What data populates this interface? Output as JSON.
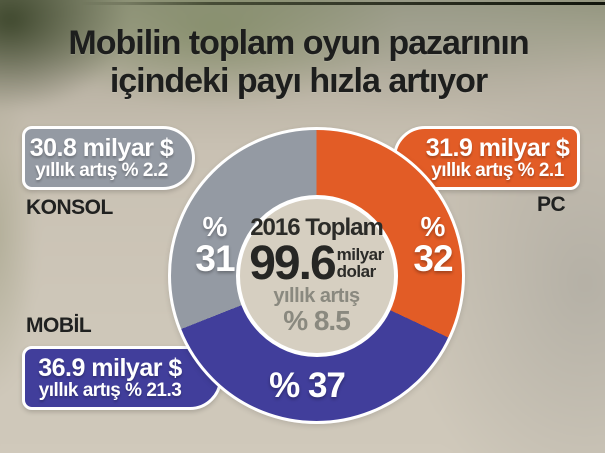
{
  "title": {
    "line1": "Mobilin toplam oyun pazarının",
    "line2": "içindeki payı hızla artıyor"
  },
  "chart_data": {
    "type": "pie",
    "title": "Mobilin toplam oyun pazarının içindeki payı hızla artıyor",
    "legend_position": "callouts",
    "hole_color": "#d6cfc1",
    "total": {
      "year_label": "2016 Toplam",
      "value": "99.6",
      "unit_line1": "milyar",
      "unit_line2": "dolar",
      "growth_label": "yıllık artış",
      "growth_value": "% 8.5",
      "total_billion_usd": 99.6,
      "annual_growth_pct": 8.5
    },
    "clockwise_order_from_top": [
      "PC",
      "MOBİL",
      "KONSOL"
    ],
    "segments": [
      {
        "label": "KONSOL",
        "share_pct": 31,
        "pct_sign": "%",
        "pct_number": "31",
        "value_label": "30.8 milyar $",
        "growth_label": "yıllık artış % 2.2",
        "billion_usd": 30.8,
        "annual_growth_pct": 2.2,
        "color": "#949aa3"
      },
      {
        "label": "PC",
        "share_pct": 32,
        "pct_sign": "%",
        "pct_number": "32",
        "value_label": "31.9 milyar $",
        "growth_label": "yıllık artış % 2.1",
        "billion_usd": 31.9,
        "annual_growth_pct": 2.1,
        "color": "#e25c26"
      },
      {
        "label": "MOBİL",
        "share_pct": 37,
        "pct_inline": "% 37",
        "value_label": "36.9 milyar $",
        "growth_label": "yıllık artış % 21.3",
        "billion_usd": 36.9,
        "annual_growth_pct": 21.3,
        "color": "#413e9b"
      }
    ]
  },
  "colors": {
    "background": "#c8c0b2",
    "title_text": "#1d1e1d",
    "callout_text": "#ffffff",
    "center_dark_text": "#2b2b28",
    "center_muted_text": "#8a897f",
    "outline_white": "#ffffff"
  }
}
